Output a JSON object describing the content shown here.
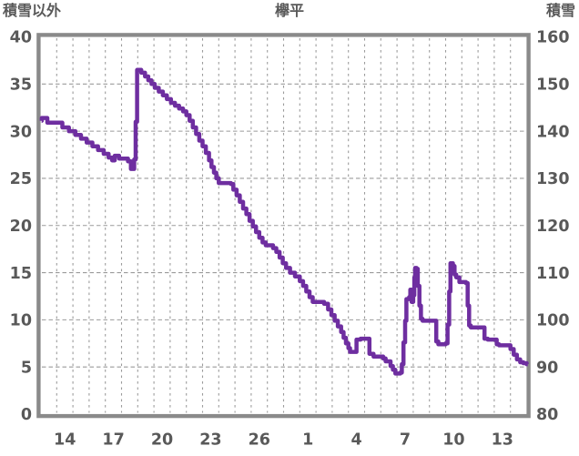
{
  "header": {
    "left_axis_title": "積雪以外",
    "chart_title": "欅平",
    "right_axis_title": "積雪"
  },
  "chart_data": {
    "type": "line",
    "line_style": "step-after",
    "title": "欅平",
    "background_color": "#ffffff",
    "grid_color": "#9b9b9b",
    "frame_color": "#8a8a8a",
    "text_color": "#595959",
    "grid": true,
    "legend_position": "none",
    "x_axis": {
      "unit": "day",
      "range": [
        0,
        30
      ],
      "gridline_step": 1,
      "tick_labels": [
        "14",
        "17",
        "20",
        "23",
        "26",
        "1",
        "4",
        "7",
        "10",
        "13"
      ],
      "tick_positions": [
        1.5,
        4.5,
        7.5,
        10.5,
        13.5,
        16.5,
        19.5,
        22.5,
        25.5,
        28.5
      ]
    },
    "y_left": {
      "title": "積雪以外",
      "range": [
        0,
        40
      ],
      "tick_step": 5,
      "tick_labels": [
        "40",
        "35",
        "30",
        "25",
        "20",
        "15",
        "10",
        "5",
        "0"
      ],
      "tick_values": [
        40,
        35,
        30,
        25,
        20,
        15,
        10,
        5,
        0
      ]
    },
    "y_right": {
      "title": "積雪",
      "range": [
        80,
        160
      ],
      "tick_step": 10,
      "tick_labels": [
        "160",
        "150",
        "140",
        "130",
        "120",
        "110",
        "100",
        "90",
        "80"
      ],
      "tick_values": [
        160,
        150,
        140,
        130,
        120,
        110,
        100,
        90,
        80
      ]
    },
    "series": [
      {
        "name": "積雪",
        "color": "#6e2ea0",
        "width": 4.5,
        "points": [
          [
            0,
            31.1
          ],
          [
            0.08,
            31.4
          ],
          [
            0.42,
            30.9
          ],
          [
            1.35,
            30.4
          ],
          [
            1.75,
            30.0
          ],
          [
            2.15,
            29.6
          ],
          [
            2.5,
            29.2
          ],
          [
            2.85,
            28.8
          ],
          [
            3.2,
            28.4
          ],
          [
            3.55,
            28.0
          ],
          [
            3.9,
            27.6
          ],
          [
            4.2,
            27.2
          ],
          [
            4.42,
            26.9
          ],
          [
            4.58,
            27.4
          ],
          [
            4.85,
            27.1
          ],
          [
            5.4,
            26.8
          ],
          [
            5.58,
            26.0
          ],
          [
            5.78,
            27.0
          ],
          [
            5.87,
            31.0
          ],
          [
            5.96,
            36.5
          ],
          [
            6.22,
            36.2
          ],
          [
            6.45,
            35.8
          ],
          [
            6.65,
            35.4
          ],
          [
            6.85,
            35.0
          ],
          [
            7.05,
            34.6
          ],
          [
            7.3,
            34.2
          ],
          [
            7.55,
            33.8
          ],
          [
            7.8,
            33.4
          ],
          [
            8.05,
            33.0
          ],
          [
            8.3,
            32.7
          ],
          [
            8.55,
            32.4
          ],
          [
            8.8,
            32.1
          ],
          [
            9.0,
            31.7
          ],
          [
            9.2,
            31.1
          ],
          [
            9.4,
            30.4
          ],
          [
            9.6,
            29.7
          ],
          [
            9.8,
            29.0
          ],
          [
            10.0,
            28.4
          ],
          [
            10.2,
            27.7
          ],
          [
            10.4,
            26.9
          ],
          [
            10.55,
            26.2
          ],
          [
            10.7,
            25.6
          ],
          [
            10.85,
            25.0
          ],
          [
            11.0,
            24.5
          ],
          [
            11.75,
            24.4
          ],
          [
            11.9,
            23.8
          ],
          [
            12.1,
            23.2
          ],
          [
            12.3,
            22.5
          ],
          [
            12.5,
            21.8
          ],
          [
            12.7,
            21.2
          ],
          [
            12.9,
            20.5
          ],
          [
            13.1,
            19.9
          ],
          [
            13.3,
            19.3
          ],
          [
            13.5,
            18.7
          ],
          [
            13.7,
            18.2
          ],
          [
            13.9,
            17.9
          ],
          [
            14.35,
            17.6
          ],
          [
            14.55,
            17.2
          ],
          [
            14.75,
            16.6
          ],
          [
            14.95,
            16.0
          ],
          [
            15.15,
            15.5
          ],
          [
            15.4,
            15.0
          ],
          [
            15.7,
            14.6
          ],
          [
            16.0,
            14.1
          ],
          [
            16.2,
            13.6
          ],
          [
            16.4,
            13.0
          ],
          [
            16.6,
            12.4
          ],
          [
            16.8,
            11.9
          ],
          [
            17.5,
            11.7
          ],
          [
            17.75,
            11.1
          ],
          [
            17.95,
            10.5
          ],
          [
            18.15,
            9.9
          ],
          [
            18.35,
            9.3
          ],
          [
            18.55,
            8.7
          ],
          [
            18.7,
            8.1
          ],
          [
            18.85,
            7.5
          ],
          [
            19.0,
            7.0
          ],
          [
            19.1,
            6.6
          ],
          [
            19.5,
            7.9
          ],
          [
            19.75,
            8.0
          ],
          [
            20.3,
            6.4
          ],
          [
            20.55,
            6.1
          ],
          [
            21.15,
            5.9
          ],
          [
            21.3,
            5.6
          ],
          [
            21.6,
            5.1
          ],
          [
            21.75,
            4.7
          ],
          [
            21.9,
            4.3
          ],
          [
            22.2,
            4.4
          ],
          [
            22.3,
            5.3
          ],
          [
            22.4,
            7.6
          ],
          [
            22.5,
            9.9
          ],
          [
            22.58,
            12.2
          ],
          [
            22.75,
            12.4
          ],
          [
            22.82,
            13.2
          ],
          [
            22.9,
            11.9
          ],
          [
            23.0,
            12.6
          ],
          [
            23.07,
            14.5
          ],
          [
            23.12,
            15.5
          ],
          [
            23.2,
            15.4
          ],
          [
            23.28,
            13.6
          ],
          [
            23.38,
            11.5
          ],
          [
            23.48,
            10.1
          ],
          [
            23.58,
            9.9
          ],
          [
            24.3,
            9.9
          ],
          [
            24.42,
            7.7
          ],
          [
            24.55,
            7.4
          ],
          [
            25.0,
            7.5
          ],
          [
            25.12,
            9.5
          ],
          [
            25.22,
            13.0
          ],
          [
            25.3,
            16.0
          ],
          [
            25.45,
            15.7
          ],
          [
            25.55,
            14.8
          ],
          [
            25.65,
            14.5
          ],
          [
            25.85,
            14.0
          ],
          [
            26.25,
            13.9
          ],
          [
            26.36,
            11.5
          ],
          [
            26.45,
            9.4
          ],
          [
            26.55,
            9.2
          ],
          [
            27.4,
            8.0
          ],
          [
            27.6,
            7.9
          ],
          [
            28.15,
            7.4
          ],
          [
            28.3,
            7.3
          ],
          [
            29.0,
            6.9
          ],
          [
            29.2,
            6.3
          ],
          [
            29.4,
            5.8
          ],
          [
            29.6,
            5.5
          ],
          [
            29.8,
            5.4
          ],
          [
            30,
            5.3
          ]
        ]
      }
    ]
  }
}
